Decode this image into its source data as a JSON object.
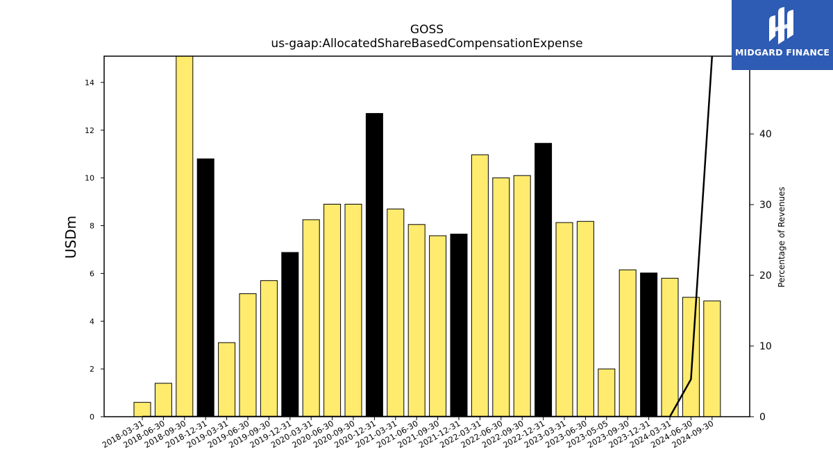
{
  "logo": {
    "text": "MIDGARD FINANCE",
    "background": "#2e5bb3"
  },
  "colors": {
    "bar_default": "#ffeb6e",
    "bar_highlight": "#000000",
    "line": "#000000"
  },
  "chart_data": {
    "type": "bar",
    "title": "GOSS",
    "subtitle": "us-gaap:AllocatedShareBasedCompensationExpense",
    "ylabel": "USDm",
    "y2label": "Percentage of Revenues",
    "ylim": [
      0,
      15.1
    ],
    "y2lim": [
      0,
      51
    ],
    "yticks": [
      0,
      2,
      4,
      6,
      8,
      10,
      12,
      14
    ],
    "y2ticks": [
      0,
      10,
      20,
      30,
      40
    ],
    "categories": [
      "2018-03-31",
      "2018-06-30",
      "2018-09-30",
      "2018-12-31",
      "2019-03-31",
      "2019-06-30",
      "2019-09-30",
      "2019-12-31",
      "2020-03-31",
      "2020-06-30",
      "2020-09-30",
      "2020-12-31",
      "2021-03-31",
      "2021-06-30",
      "2021-09-30",
      "2021-12-31",
      "2022-03-31",
      "2022-06-30",
      "2022-09-30",
      "2022-12-31",
      "2023-03-31",
      "2023-06-30",
      "2023-05-05",
      "2023-09-30",
      "2023-12-31",
      "2024-03-31",
      "2024-06-30",
      "2024-09-30"
    ],
    "values": [
      0.6,
      1.4,
      15.1,
      10.8,
      3.1,
      5.15,
      5.7,
      6.88,
      8.25,
      8.9,
      8.9,
      12.7,
      8.7,
      8.05,
      7.58,
      7.65,
      10.97,
      10.0,
      10.1,
      11.45,
      8.13,
      8.18,
      2.0,
      6.15,
      6.02,
      5.8,
      5.0,
      4.85
    ],
    "highlight": [
      false,
      false,
      false,
      true,
      false,
      false,
      false,
      true,
      false,
      false,
      false,
      true,
      false,
      false,
      false,
      true,
      false,
      false,
      false,
      true,
      false,
      false,
      false,
      false,
      true,
      false,
      false,
      false
    ],
    "line_series": {
      "name": "Percentage of Revenues",
      "values": [
        0,
        0,
        0,
        0,
        0,
        0,
        0,
        0,
        0,
        0,
        0,
        0,
        0,
        0,
        0,
        0,
        0,
        0,
        0,
        0,
        0,
        0,
        0,
        0,
        0,
        0,
        5.3,
        51
      ]
    }
  }
}
